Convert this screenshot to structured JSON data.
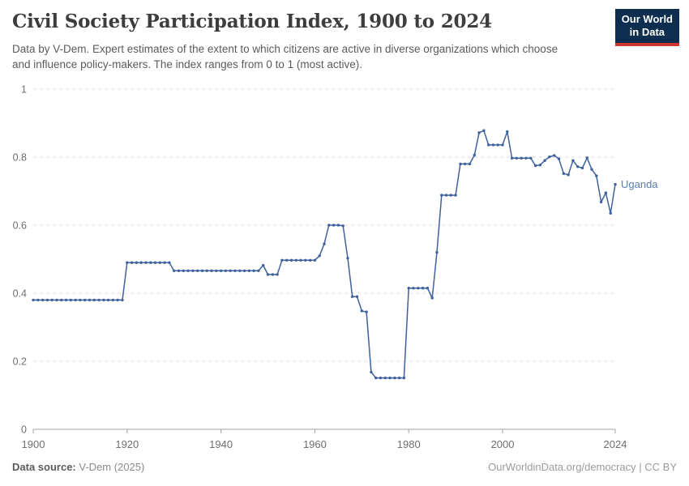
{
  "header": {
    "title": "Civil Society Participation Index, 1900 to 2024",
    "subtitle": "Data by V-Dem. Expert estimates of the extent to which citizens are active in diverse organizations which choose and influence policy-makers. The index ranges from 0 to 1 (most active).",
    "logo": {
      "line1": "Our World",
      "line2": "in Data",
      "bg_color": "#0d2e4f",
      "accent_color": "#cf3531"
    }
  },
  "chart_data": {
    "type": "line",
    "title": "Civil Society Participation Index, 1900 to 2024",
    "xlabel": "",
    "ylabel": "",
    "xlim": [
      1900,
      2024
    ],
    "ylim": [
      0,
      1
    ],
    "grid": "dashed-horizontal",
    "legend_position": "end-of-line-label",
    "x_ticks": [
      1900,
      1920,
      1940,
      1960,
      1980,
      2000,
      2024
    ],
    "y_ticks": [
      0,
      0.2,
      0.4,
      0.6,
      0.8,
      1
    ],
    "y_tick_labels": [
      "0",
      "0.2",
      "0.4",
      "0.6",
      "0.8",
      "1"
    ],
    "end_label": "Uganda",
    "line_color": "#3f619e",
    "end_label_color": "#5b7cb0",
    "series": [
      {
        "name": "Uganda",
        "points": [
          [
            1900,
            0.38
          ],
          [
            1901,
            0.38
          ],
          [
            1902,
            0.38
          ],
          [
            1903,
            0.38
          ],
          [
            1904,
            0.38
          ],
          [
            1905,
            0.38
          ],
          [
            1906,
            0.38
          ],
          [
            1907,
            0.38
          ],
          [
            1908,
            0.38
          ],
          [
            1909,
            0.38
          ],
          [
            1910,
            0.38
          ],
          [
            1911,
            0.38
          ],
          [
            1912,
            0.38
          ],
          [
            1913,
            0.38
          ],
          [
            1914,
            0.38
          ],
          [
            1915,
            0.38
          ],
          [
            1916,
            0.38
          ],
          [
            1917,
            0.38
          ],
          [
            1918,
            0.38
          ],
          [
            1919,
            0.38
          ],
          [
            1920,
            0.49
          ],
          [
            1921,
            0.49
          ],
          [
            1922,
            0.49
          ],
          [
            1923,
            0.49
          ],
          [
            1924,
            0.49
          ],
          [
            1925,
            0.49
          ],
          [
            1926,
            0.49
          ],
          [
            1927,
            0.49
          ],
          [
            1928,
            0.49
          ],
          [
            1929,
            0.49
          ],
          [
            1930,
            0.466
          ],
          [
            1931,
            0.466
          ],
          [
            1932,
            0.466
          ],
          [
            1933,
            0.466
          ],
          [
            1934,
            0.466
          ],
          [
            1935,
            0.466
          ],
          [
            1936,
            0.466
          ],
          [
            1937,
            0.466
          ],
          [
            1938,
            0.466
          ],
          [
            1939,
            0.466
          ],
          [
            1940,
            0.466
          ],
          [
            1941,
            0.466
          ],
          [
            1942,
            0.466
          ],
          [
            1943,
            0.466
          ],
          [
            1944,
            0.466
          ],
          [
            1945,
            0.466
          ],
          [
            1946,
            0.466
          ],
          [
            1947,
            0.466
          ],
          [
            1948,
            0.466
          ],
          [
            1949,
            0.482
          ],
          [
            1950,
            0.455
          ],
          [
            1951,
            0.455
          ],
          [
            1952,
            0.455
          ],
          [
            1953,
            0.497
          ],
          [
            1954,
            0.497
          ],
          [
            1955,
            0.497
          ],
          [
            1956,
            0.497
          ],
          [
            1957,
            0.497
          ],
          [
            1958,
            0.497
          ],
          [
            1959,
            0.497
          ],
          [
            1960,
            0.497
          ],
          [
            1961,
            0.51
          ],
          [
            1962,
            0.545
          ],
          [
            1963,
            0.6
          ],
          [
            1964,
            0.6
          ],
          [
            1965,
            0.6
          ],
          [
            1966,
            0.598
          ],
          [
            1967,
            0.503
          ],
          [
            1968,
            0.39
          ],
          [
            1969,
            0.39
          ],
          [
            1970,
            0.348
          ],
          [
            1971,
            0.345
          ],
          [
            1972,
            0.168
          ],
          [
            1973,
            0.151
          ],
          [
            1974,
            0.151
          ],
          [
            1975,
            0.151
          ],
          [
            1976,
            0.151
          ],
          [
            1977,
            0.151
          ],
          [
            1978,
            0.151
          ],
          [
            1979,
            0.151
          ],
          [
            1980,
            0.415
          ],
          [
            1981,
            0.415
          ],
          [
            1982,
            0.415
          ],
          [
            1983,
            0.415
          ],
          [
            1984,
            0.415
          ],
          [
            1985,
            0.386
          ],
          [
            1986,
            0.52
          ],
          [
            1987,
            0.688
          ],
          [
            1988,
            0.688
          ],
          [
            1989,
            0.688
          ],
          [
            1990,
            0.688
          ],
          [
            1991,
            0.78
          ],
          [
            1992,
            0.78
          ],
          [
            1993,
            0.78
          ],
          [
            1994,
            0.806
          ],
          [
            1995,
            0.872
          ],
          [
            1996,
            0.878
          ],
          [
            1997,
            0.836
          ],
          [
            1998,
            0.836
          ],
          [
            1999,
            0.836
          ],
          [
            2000,
            0.836
          ],
          [
            2001,
            0.875
          ],
          [
            2002,
            0.797
          ],
          [
            2003,
            0.797
          ],
          [
            2004,
            0.797
          ],
          [
            2005,
            0.797
          ],
          [
            2006,
            0.797
          ],
          [
            2007,
            0.775
          ],
          [
            2008,
            0.777
          ],
          [
            2009,
            0.79
          ],
          [
            2010,
            0.801
          ],
          [
            2011,
            0.805
          ],
          [
            2012,
            0.795
          ],
          [
            2013,
            0.752
          ],
          [
            2014,
            0.748
          ],
          [
            2015,
            0.79
          ],
          [
            2016,
            0.772
          ],
          [
            2017,
            0.768
          ],
          [
            2018,
            0.798
          ],
          [
            2019,
            0.764
          ],
          [
            2020,
            0.745
          ],
          [
            2021,
            0.668
          ],
          [
            2022,
            0.695
          ],
          [
            2023,
            0.635
          ],
          [
            2024,
            0.72
          ]
        ]
      }
    ]
  },
  "footer": {
    "source_label": "Data source:",
    "source_value": " V-Dem (2025)",
    "right_text": "OurWorldinData.org/democracy | CC BY"
  }
}
